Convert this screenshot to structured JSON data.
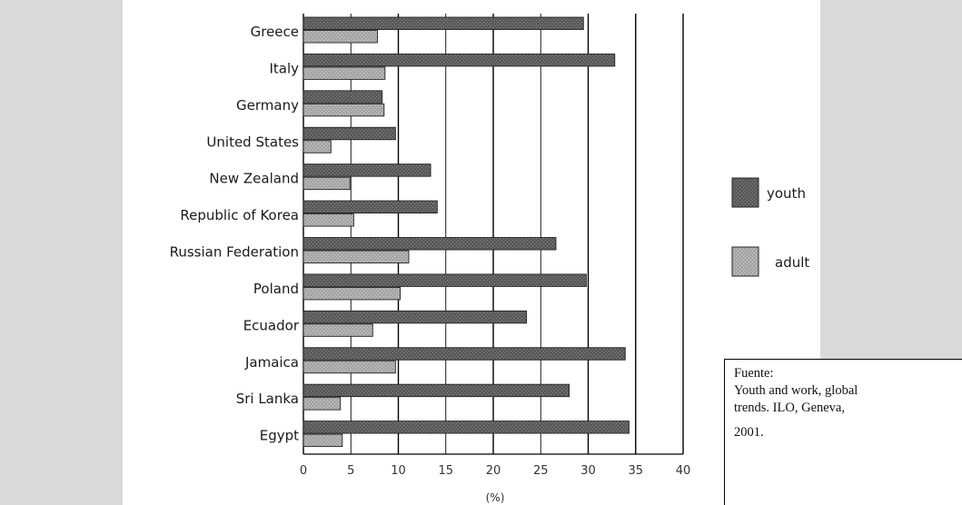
{
  "chart_data": {
    "type": "bar",
    "orientation": "horizontal",
    "categories": [
      "Greece",
      "Italy",
      "Germany",
      "United States",
      "New Zealand",
      "Republic of Korea",
      "Russian Federation",
      "Poland",
      "Ecuador",
      "Jamaica",
      "Sri Lanka",
      "Egypt"
    ],
    "series": [
      {
        "name": "youth",
        "values": [
          29.5,
          32.8,
          8.3,
          9.7,
          13.4,
          14.1,
          26.6,
          29.8,
          23.5,
          33.9,
          28.0,
          34.3
        ],
        "color": "#5a5a5a"
      },
      {
        "name": "adult",
        "values": [
          7.8,
          8.6,
          8.5,
          2.9,
          4.9,
          5.3,
          11.1,
          10.2,
          7.3,
          9.7,
          3.9,
          4.1
        ],
        "color": "#a6a6a6"
      }
    ],
    "xlabel": "(%)",
    "xlim": [
      0,
      40
    ],
    "xticks": [
      "0",
      "5",
      "10",
      "15",
      "20",
      "25",
      "30",
      "35",
      "40"
    ],
    "grid": "vertical lines",
    "legend_position": "right"
  },
  "source_note": {
    "heading": "Fuente:",
    "line1": "Youth and work, global",
    "line2": "trends.  ILO,  Geneva,",
    "line3": "2001."
  }
}
